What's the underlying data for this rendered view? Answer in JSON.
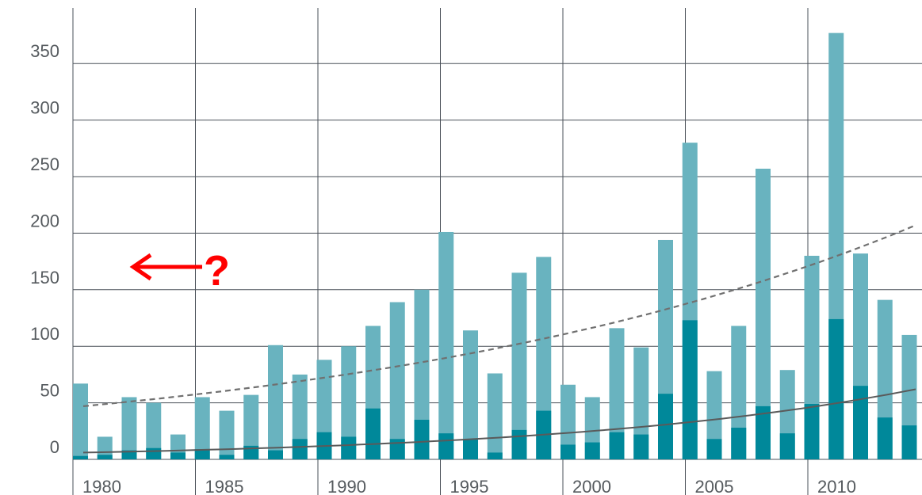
{
  "chart_data": {
    "type": "bar",
    "title": "",
    "xlabel": "",
    "ylabel": "",
    "ylim": [
      0,
      380
    ],
    "y_ticks": [
      "0",
      "50",
      "100",
      "150",
      "200",
      "250",
      "300",
      "350"
    ],
    "x_tick_labels": [
      "1980",
      "1985",
      "1990",
      "1995",
      "2000",
      "2005",
      "2010"
    ],
    "categories": [
      "1980",
      "1981",
      "1982",
      "1983",
      "1984",
      "1985",
      "1986",
      "1987",
      "1988",
      "1989",
      "1990",
      "1991",
      "1992",
      "1993",
      "1994",
      "1995",
      "1996",
      "1997",
      "1998",
      "1999",
      "2000",
      "2001",
      "2002",
      "2003",
      "2004",
      "2005",
      "2006",
      "2007",
      "2008",
      "2009",
      "2010",
      "2011",
      "2012",
      "2013",
      "2014"
    ],
    "series": [
      {
        "values": [
          67,
          20,
          55,
          50,
          22,
          55,
          43,
          57,
          101,
          75,
          88,
          100,
          118,
          139,
          150,
          201,
          114,
          76,
          165,
          179,
          66,
          55,
          116,
          99,
          194,
          280,
          78,
          118,
          257,
          79,
          180,
          377,
          182,
          141,
          110
        ]
      },
      {
        "values": [
          3,
          4,
          8,
          10,
          6,
          9,
          4,
          12,
          8,
          18,
          24,
          20,
          45,
          18,
          35,
          23,
          18,
          6,
          26,
          43,
          13,
          15,
          24,
          22,
          58,
          123,
          18,
          28,
          47,
          23,
          49,
          124,
          65,
          37,
          30
        ]
      }
    ],
    "trend_lines": {
      "dashed": {
        "start": 47,
        "end": 207
      },
      "solid": {
        "start": 6,
        "end": 62
      }
    },
    "annotation": {
      "text": "?"
    },
    "colors": {
      "light_bar": "#69b3bf",
      "dark_bar": "#00889a",
      "dashed_trend": "#707070",
      "solid_trend": "#5a5a5a",
      "annotation": "#ff0000",
      "grid": "#4a5058",
      "axis_text": "#555a5e"
    },
    "grid": true,
    "legend": "none"
  }
}
